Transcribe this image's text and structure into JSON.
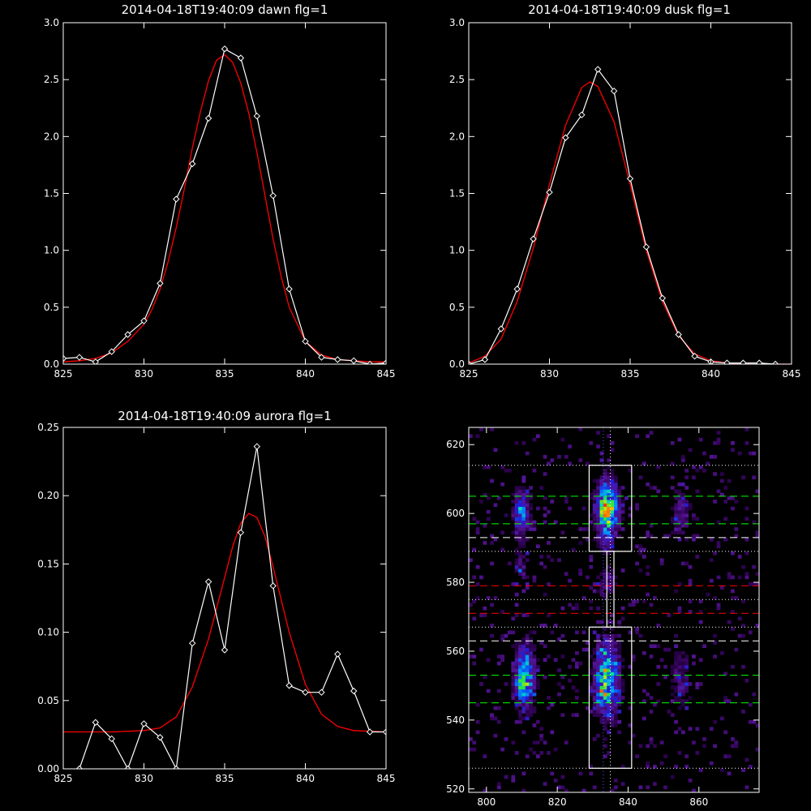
{
  "chart_data": [
    {
      "type": "line",
      "title": "2014-04-18T19:40:09 dawn flg=1",
      "xlim": [
        825,
        845
      ],
      "ylim": [
        0,
        3
      ],
      "x_ticks": [
        "825",
        "830",
        "835",
        "840",
        "845"
      ],
      "y_ticks": [
        "0.0",
        "0.5",
        "1.0",
        "1.5",
        "2.0",
        "2.5",
        "3.0"
      ],
      "series": [
        {
          "kind": "data",
          "color": "#ffffff",
          "marker": "diamond",
          "x": [
            825,
            826,
            827,
            828,
            829,
            830,
            831,
            832,
            833,
            834,
            835,
            836,
            837,
            838,
            839,
            840,
            841,
            842,
            843,
            844,
            845
          ],
          "y": [
            0.05,
            0.06,
            0.02,
            0.11,
            0.26,
            0.38,
            0.71,
            1.45,
            1.76,
            2.16,
            2.77,
            2.69,
            2.18,
            1.48,
            0.66,
            0.2,
            0.06,
            0.04,
            0.03,
            0.0,
            0.01
          ]
        },
        {
          "kind": "fit",
          "color": "#ff0000",
          "x": [
            825,
            826,
            827,
            828,
            829,
            830,
            830.5,
            831,
            831.5,
            832,
            832.5,
            833,
            833.5,
            834,
            834.5,
            835,
            835.5,
            836,
            836.5,
            837,
            837.5,
            838,
            838.5,
            839,
            840,
            841,
            842,
            843,
            844,
            845
          ],
          "y": [
            0.02,
            0.03,
            0.05,
            0.1,
            0.2,
            0.35,
            0.48,
            0.66,
            0.9,
            1.2,
            1.54,
            1.9,
            2.22,
            2.49,
            2.67,
            2.72,
            2.65,
            2.47,
            2.2,
            1.86,
            1.48,
            1.1,
            0.77,
            0.5,
            0.2,
            0.08,
            0.04,
            0.03,
            0.02,
            0.02
          ]
        }
      ]
    },
    {
      "type": "line",
      "title": "2014-04-18T19:40:09 dusk flg=1",
      "xlim": [
        825,
        845
      ],
      "ylim": [
        0,
        3
      ],
      "x_ticks": [
        "825",
        "830",
        "835",
        "840",
        "845"
      ],
      "y_ticks": [
        "0.0",
        "0.5",
        "1.0",
        "1.5",
        "2.0",
        "2.5",
        "3.0"
      ],
      "series": [
        {
          "kind": "data",
          "color": "#ffffff",
          "marker": "diamond",
          "x": [
            825,
            826,
            827,
            828,
            829,
            830,
            831,
            832,
            833,
            834,
            835,
            836,
            837,
            838,
            839,
            840,
            841,
            842,
            843,
            844
          ],
          "y": [
            0.0,
            0.04,
            0.31,
            0.66,
            1.1,
            1.51,
            1.99,
            2.19,
            2.59,
            2.4,
            1.63,
            1.03,
            0.58,
            0.26,
            0.07,
            0.02,
            0.01,
            0.01,
            0.01,
            0.0
          ]
        },
        {
          "kind": "fit",
          "color": "#ff0000",
          "x": [
            825,
            826,
            827,
            828,
            829,
            830,
            831,
            832,
            832.5,
            833,
            834,
            835,
            836,
            837,
            838,
            839,
            840,
            841,
            842,
            843,
            844,
            845
          ],
          "y": [
            0.01,
            0.07,
            0.22,
            0.55,
            1.02,
            1.58,
            2.1,
            2.43,
            2.48,
            2.44,
            2.13,
            1.58,
            1.0,
            0.55,
            0.25,
            0.09,
            0.03,
            0.01,
            0.0,
            0.0,
            0.0,
            0.0
          ]
        }
      ]
    },
    {
      "type": "line",
      "title": "2014-04-18T19:40:09 aurora flg=1",
      "xlim": [
        825,
        845
      ],
      "ylim": [
        0,
        0.25
      ],
      "x_ticks": [
        "825",
        "830",
        "835",
        "840",
        "845"
      ],
      "y_ticks": [
        "0.00",
        "0.05",
        "0.10",
        "0.15",
        "0.20",
        "0.25"
      ],
      "series": [
        {
          "kind": "data",
          "color": "#ffffff",
          "marker": "diamond",
          "x": [
            826,
            827,
            828,
            829,
            830,
            831,
            832,
            833,
            834,
            835,
            836,
            837,
            838,
            839,
            840,
            841,
            842,
            843,
            844,
            845
          ],
          "y": [
            0.0,
            0.034,
            0.022,
            0.0,
            0.033,
            0.023,
            0.0,
            0.092,
            0.137,
            0.087,
            0.173,
            0.236,
            0.134,
            0.061,
            0.056,
            0.056,
            0.084,
            0.057,
            0.027,
            0.027
          ]
        },
        {
          "kind": "fit",
          "color": "#ff0000",
          "x": [
            825,
            828,
            830,
            831,
            832,
            833,
            834,
            835,
            835.5,
            836,
            836.5,
            837,
            837.5,
            838,
            839,
            840,
            841,
            842,
            843,
            845
          ],
          "y": [
            0.027,
            0.027,
            0.028,
            0.03,
            0.038,
            0.06,
            0.095,
            0.14,
            0.163,
            0.18,
            0.187,
            0.184,
            0.17,
            0.148,
            0.1,
            0.062,
            0.04,
            0.031,
            0.028,
            0.027
          ]
        }
      ]
    },
    {
      "type": "heatmap",
      "xlim": [
        795,
        877
      ],
      "ylim": [
        519,
        625
      ],
      "x_ticks": [
        "800",
        "820",
        "840",
        "860"
      ],
      "y_ticks": [
        "520",
        "540",
        "560",
        "580",
        "600",
        "620"
      ],
      "blobs": [
        {
          "x": 810,
          "y": 600,
          "sx": 1.8,
          "sy": 5,
          "amp": 0.42
        },
        {
          "x": 810,
          "y": 584,
          "sx": 1.8,
          "sy": 3.5,
          "amp": 0.18
        },
        {
          "x": 811,
          "y": 553,
          "sx": 2.0,
          "sy": 7,
          "amp": 0.52
        },
        {
          "x": 810,
          "y": 550,
          "sx": 1.2,
          "sy": 1.5,
          "amp": 0.25
        },
        {
          "x": 834,
          "y": 601,
          "sx": 2.2,
          "sy": 6,
          "amp": 0.72
        },
        {
          "x": 835,
          "y": 601,
          "sx": 0.8,
          "sy": 0.8,
          "amp": 0.3
        },
        {
          "x": 834,
          "y": 580,
          "sx": 2.0,
          "sy": 3,
          "amp": 0.22
        },
        {
          "x": 834,
          "y": 552,
          "sx": 2.5,
          "sy": 8,
          "amp": 0.58
        },
        {
          "x": 833,
          "y": 548,
          "sx": 1.2,
          "sy": 1.2,
          "amp": 0.3
        },
        {
          "x": 855,
          "y": 600,
          "sx": 2.0,
          "sy": 5,
          "amp": 0.22
        },
        {
          "x": 855,
          "y": 552,
          "sx": 2.0,
          "sy": 7,
          "amp": 0.2
        }
      ],
      "boxes": [
        {
          "x0": 829,
          "x1": 841,
          "y0": 589,
          "y1": 614,
          "color": "#ffffff"
        },
        {
          "x0": 829,
          "x1": 841,
          "y0": 526,
          "y1": 567,
          "color": "#ffffff"
        },
        {
          "x0": 834,
          "x1": 836,
          "y0": 567,
          "y1": 589,
          "color": "#ffffff"
        }
      ],
      "hlines": [
        {
          "y": 614,
          "color": "#ffffff",
          "style": "dotted"
        },
        {
          "y": 605,
          "color": "#00ff00",
          "style": "dashed"
        },
        {
          "y": 597,
          "color": "#00ff00",
          "style": "dashed"
        },
        {
          "y": 593,
          "color": "#ffffff",
          "style": "dashed"
        },
        {
          "y": 589,
          "color": "#ffffff",
          "style": "dotted"
        },
        {
          "y": 579,
          "color": "#ff0000",
          "style": "dashed"
        },
        {
          "y": 575,
          "color": "#ffffff",
          "style": "dotted"
        },
        {
          "y": 571,
          "color": "#ff0000",
          "style": "dashed"
        },
        {
          "y": 567,
          "color": "#ffffff",
          "style": "dotted"
        },
        {
          "y": 563,
          "color": "#ffffff",
          "style": "dashed"
        },
        {
          "y": 553,
          "color": "#00ff00",
          "style": "dashed"
        },
        {
          "y": 545,
          "color": "#00ff00",
          "style": "dashed"
        },
        {
          "y": 526,
          "color": "#ffffff",
          "style": "dotted"
        }
      ],
      "vlines": [
        {
          "x": 833,
          "color": "#5555ff",
          "style": "dotted"
        },
        {
          "x": 835,
          "color": "#ffffff",
          "style": "dotted"
        }
      ]
    }
  ]
}
